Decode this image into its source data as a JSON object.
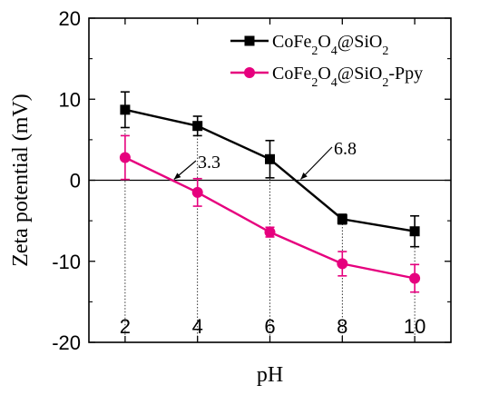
{
  "chart_data": {
    "type": "line",
    "xlabel": "pH",
    "ylabel": "Zeta potential (mV)",
    "xlim": [
      1,
      11
    ],
    "ylim": [
      -20,
      20
    ],
    "x_ticks": [
      "2",
      "4",
      "6",
      "8",
      "10"
    ],
    "y_ticks": [
      "20",
      "10",
      "0",
      "-10",
      "-20"
    ],
    "x": [
      2,
      4,
      6,
      8,
      10
    ],
    "series": [
      {
        "name": "CoFe2O4@SiO2",
        "color": "#000000",
        "marker": "square",
        "values": [
          8.7,
          6.7,
          2.6,
          -4.8,
          -6.3
        ],
        "errors": [
          2.2,
          1.2,
          2.3,
          0.6,
          1.9
        ]
      },
      {
        "name": "CoFe2O4@SiO2-Ppy",
        "color": "#e6007e",
        "marker": "circle",
        "values": [
          2.8,
          -1.5,
          -6.4,
          -10.3,
          -12.1
        ],
        "errors": [
          2.7,
          1.7,
          0.6,
          1.5,
          1.7
        ]
      }
    ],
    "legend": {
      "position": "top-right",
      "entries": [
        {
          "base": "CoFe",
          "sub1": "2",
          "mid": "O",
          "sub2": "4",
          "tail": "@SiO",
          "sub3": "2",
          "end": ""
        },
        {
          "base": "CoFe",
          "sub1": "2",
          "mid": "O",
          "sub2": "4",
          "tail": "@SiO",
          "sub3": "2",
          "end": "-Ppy"
        }
      ]
    },
    "annotations": [
      {
        "text": "3.3",
        "x": 3.3,
        "y": 0
      },
      {
        "text": "6.8",
        "x": 6.8,
        "y": 0
      }
    ],
    "grid": false,
    "dotted_verticals_at": [
      2,
      4,
      6,
      8,
      10
    ]
  }
}
